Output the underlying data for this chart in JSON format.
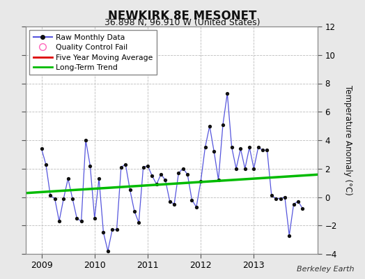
{
  "title": "NEWKIRK 8E MESONET",
  "subtitle": "36.898 N, 96.910 W (United States)",
  "ylabel": "Temperature Anomaly (°C)",
  "credit": "Berkeley Earth",
  "ylim": [
    -4,
    12
  ],
  "yticks": [
    -4,
    -2,
    0,
    2,
    4,
    6,
    8,
    10,
    12
  ],
  "xlim": [
    2008.7,
    2014.2
  ],
  "bg_color": "#e8e8e8",
  "plot_bg_color": "#ffffff",
  "raw_color": "#5555dd",
  "trend_color": "#00bb00",
  "mavg_color": "#dd0000",
  "raw_x": [
    2009.0,
    2009.083,
    2009.167,
    2009.25,
    2009.333,
    2009.417,
    2009.5,
    2009.583,
    2009.667,
    2009.75,
    2009.833,
    2009.917,
    2010.0,
    2010.083,
    2010.167,
    2010.25,
    2010.333,
    2010.417,
    2010.5,
    2010.583,
    2010.667,
    2010.75,
    2010.833,
    2010.917,
    2011.0,
    2011.083,
    2011.167,
    2011.25,
    2011.333,
    2011.417,
    2011.5,
    2011.583,
    2011.667,
    2011.75,
    2011.833,
    2011.917,
    2012.0,
    2012.083,
    2012.167,
    2012.25,
    2012.333,
    2012.417,
    2012.5,
    2012.583,
    2012.667,
    2012.75,
    2012.833,
    2012.917,
    2013.0,
    2013.083,
    2013.167,
    2013.25,
    2013.333,
    2013.417,
    2013.5,
    2013.583,
    2013.667,
    2013.75,
    2013.833,
    2013.917
  ],
  "raw_y": [
    3.4,
    2.3,
    0.1,
    -0.1,
    -1.7,
    -0.1,
    1.3,
    -0.1,
    -1.5,
    -1.7,
    4.0,
    2.2,
    -1.5,
    1.3,
    -2.5,
    -3.8,
    -2.3,
    -2.3,
    2.1,
    2.3,
    0.5,
    -1.0,
    -1.8,
    2.1,
    2.2,
    1.5,
    0.9,
    1.6,
    1.2,
    -0.3,
    -0.5,
    1.7,
    2.0,
    1.6,
    -0.2,
    -0.7,
    1.1,
    3.5,
    5.0,
    3.2,
    1.2,
    5.1,
    7.3,
    3.5,
    2.0,
    3.4,
    2.0,
    3.5,
    2.0,
    3.5,
    3.3,
    3.3,
    0.1,
    -0.1,
    -0.1,
    0.0,
    -2.7,
    -0.5,
    -0.3,
    -0.8
  ],
  "trend_x": [
    2008.7,
    2014.2
  ],
  "trend_y": [
    0.28,
    1.58
  ],
  "xticks": [
    2009,
    2010,
    2011,
    2012,
    2013
  ],
  "legend_items": [
    {
      "label": "Raw Monthly Data",
      "color": "#5555dd",
      "type": "line_dot"
    },
    {
      "label": "Quality Control Fail",
      "color": "#ff66bb",
      "type": "open_circle"
    },
    {
      "label": "Five Year Moving Average",
      "color": "#dd0000",
      "type": "line"
    },
    {
      "label": "Long-Term Trend",
      "color": "#00bb00",
      "type": "line"
    }
  ]
}
